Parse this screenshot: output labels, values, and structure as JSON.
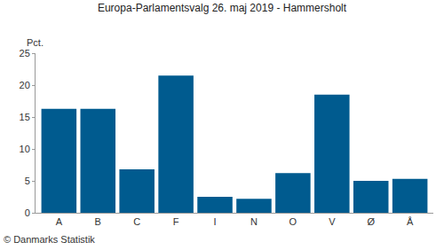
{
  "chart_data": {
    "type": "bar",
    "title": "Europa-Parlamentsvalg 26. maj 2019 - Hammersholt",
    "ylabel": "Pct.",
    "annotations": [
      "© Danmarks Statistik"
    ],
    "categories": [
      "A",
      "B",
      "C",
      "F",
      "I",
      "N",
      "O",
      "V",
      "Ø",
      "Å"
    ],
    "values": [
      16.3,
      16.3,
      6.8,
      21.5,
      2.5,
      2.2,
      6.2,
      18.5,
      5.0,
      5.3
    ],
    "color": "#005b8f",
    "ylim": [
      0,
      25
    ],
    "yticks": [
      0,
      5,
      10,
      15,
      20,
      25
    ],
    "grid": false
  }
}
